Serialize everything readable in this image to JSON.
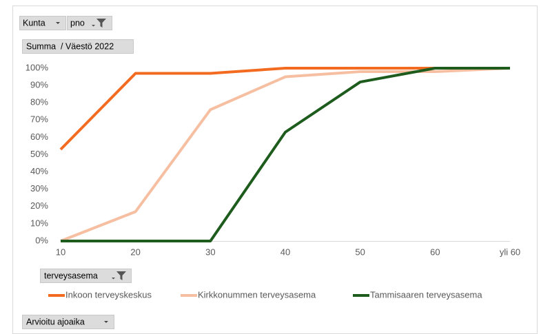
{
  "chart_data": {
    "type": "line",
    "filter_buttons": [
      "Kunta",
      "pno"
    ],
    "value_field_button": "Summa  / Väestö 2022",
    "legend_field_button": "terveysasema",
    "axis_field_button": "Arvioitu ajoaika",
    "categories": [
      "10",
      "20",
      "30",
      "40",
      "50",
      "60",
      "yli 60"
    ],
    "series": [
      {
        "name": "Inkoon terveyskeskus",
        "color": "#f26b21",
        "values": [
          53,
          97,
          97,
          100,
          100,
          100,
          100
        ]
      },
      {
        "name": "Kirkkonummen terveysasema",
        "color": "#f6bfa2",
        "values": [
          0,
          17,
          76,
          95,
          98,
          98,
          100
        ]
      },
      {
        "name": "Tammisaaren terveysasema",
        "color": "#1e5c1e",
        "values": [
          0,
          0,
          0,
          63,
          92,
          100,
          100
        ]
      }
    ],
    "ylim": [
      0,
      100
    ],
    "yticks": [
      {
        "value": 0,
        "label": "0%"
      },
      {
        "value": 10,
        "label": "10%"
      },
      {
        "value": 20,
        "label": "20%"
      },
      {
        "value": 30,
        "label": "30%"
      },
      {
        "value": 40,
        "label": "40%"
      },
      {
        "value": 50,
        "label": "50%"
      },
      {
        "value": 60,
        "label": "60%"
      },
      {
        "value": 70,
        "label": "70%"
      },
      {
        "value": 80,
        "label": "80%"
      },
      {
        "value": 90,
        "label": "90%"
      },
      {
        "value": 100,
        "label": "100%"
      }
    ],
    "grid": false
  }
}
